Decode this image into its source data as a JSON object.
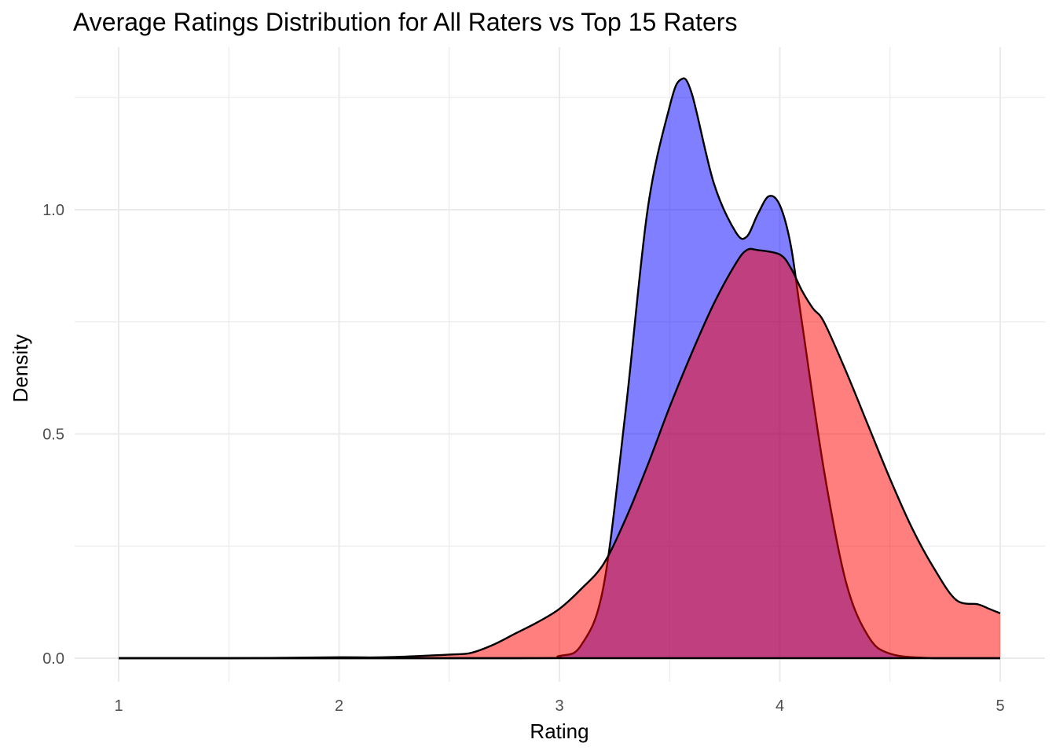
{
  "chart_data": {
    "type": "area",
    "title": "Average Ratings Distribution for All Raters vs Top 15 Raters",
    "xlabel": "Rating",
    "ylabel": "Density",
    "xlim": [
      1,
      5
    ],
    "ylim": [
      0,
      1.3
    ],
    "x_ticks": [
      "1",
      "2",
      "3",
      "4",
      "5"
    ],
    "y_ticks": [
      "0.0",
      "0.5",
      "1.0"
    ],
    "grid": true,
    "legend": "none",
    "series": [
      {
        "color": "#0000FF",
        "opacity": 0.5,
        "x": [
          1.0,
          2.8,
          3.0,
          3.1,
          3.2,
          3.3,
          3.4,
          3.5,
          3.55,
          3.6,
          3.7,
          3.8,
          3.85,
          3.9,
          3.95,
          4.0,
          4.05,
          4.1,
          4.2,
          4.3,
          4.4,
          4.5,
          4.7,
          5.0
        ],
        "y": [
          0.0,
          0.0,
          0.005,
          0.03,
          0.16,
          0.55,
          1.0,
          1.23,
          1.29,
          1.26,
          1.06,
          0.95,
          0.94,
          0.99,
          1.03,
          1.01,
          0.92,
          0.75,
          0.42,
          0.17,
          0.05,
          0.01,
          0.0,
          0.0
        ]
      },
      {
        "color": "#FF0000",
        "opacity": 0.5,
        "x": [
          1.0,
          1.5,
          2.0,
          2.2,
          2.5,
          2.6,
          2.7,
          2.8,
          2.9,
          3.0,
          3.1,
          3.2,
          3.3,
          3.4,
          3.5,
          3.6,
          3.7,
          3.8,
          3.85,
          3.9,
          4.0,
          4.05,
          4.1,
          4.15,
          4.2,
          4.3,
          4.4,
          4.5,
          4.6,
          4.7,
          4.8,
          4.9,
          4.95,
          5.0
        ],
        "y": [
          0.0,
          0.0,
          0.002,
          0.002,
          0.008,
          0.012,
          0.03,
          0.055,
          0.08,
          0.11,
          0.155,
          0.21,
          0.31,
          0.43,
          0.56,
          0.68,
          0.79,
          0.88,
          0.91,
          0.91,
          0.9,
          0.87,
          0.82,
          0.78,
          0.75,
          0.64,
          0.52,
          0.4,
          0.29,
          0.2,
          0.13,
          0.12,
          0.11,
          0.1
        ]
      }
    ]
  }
}
